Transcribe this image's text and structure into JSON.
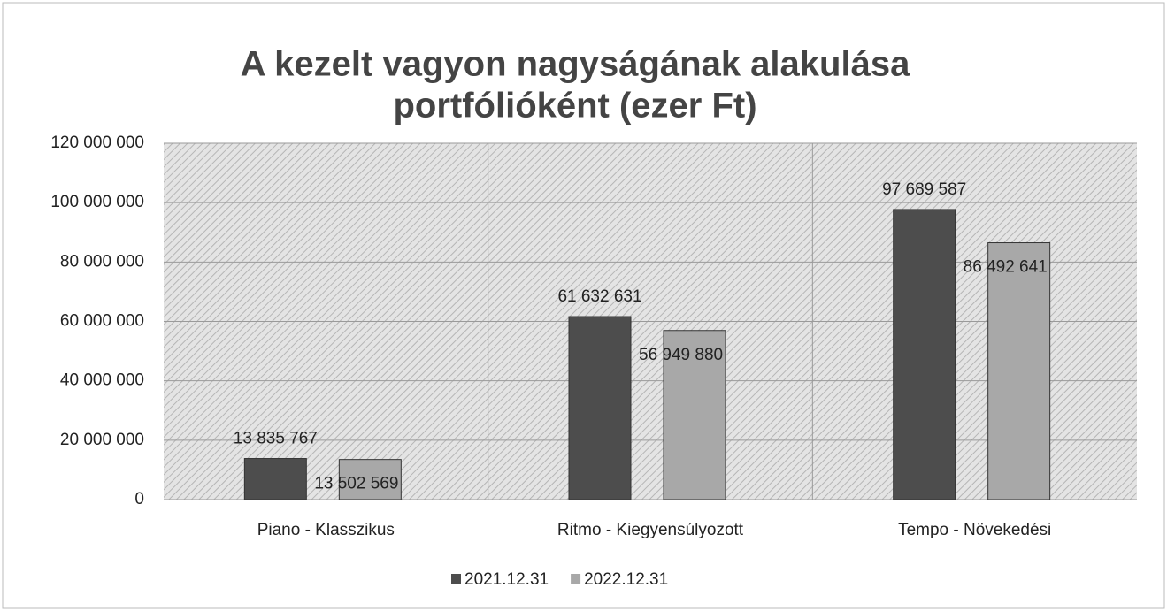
{
  "chart_data": {
    "type": "bar",
    "title": [
      "A kezelt vagyon nagyságának alakulása",
      "portfólióként (ezer Ft)"
    ],
    "categories": [
      "Piano - Klasszikus",
      "Ritmo - Kiegyensúlyozott",
      "Tempo - Növekedési"
    ],
    "series": [
      {
        "name": "2021.12.31",
        "color": "#4d4d4d",
        "values": [
          13835767,
          61632631,
          97689587
        ],
        "value_labels": [
          "13 835 767",
          "61 632 631",
          "97 689 587"
        ]
      },
      {
        "name": "2022.12.31",
        "color": "#a8a8a8",
        "values": [
          13502569,
          56949880,
          86492641
        ],
        "value_labels": [
          "13 502 569",
          "56 949 880",
          "86 492 641"
        ]
      }
    ],
    "ylim": [
      0,
      120000000
    ],
    "yticks": [
      0,
      {
        "value": 20000000,
        "label": "20 000 000"
      },
      {
        "value": 40000000,
        "label": "40 000 000"
      },
      {
        "value": 60000000,
        "label": "60 000 000"
      },
      {
        "value": 80000000,
        "label": "80 000 000"
      },
      {
        "value": 100000000,
        "label": "100 000 000"
      },
      {
        "value": 120000000,
        "label": "120 000 000"
      }
    ],
    "grid": true,
    "legend": "bottom"
  }
}
